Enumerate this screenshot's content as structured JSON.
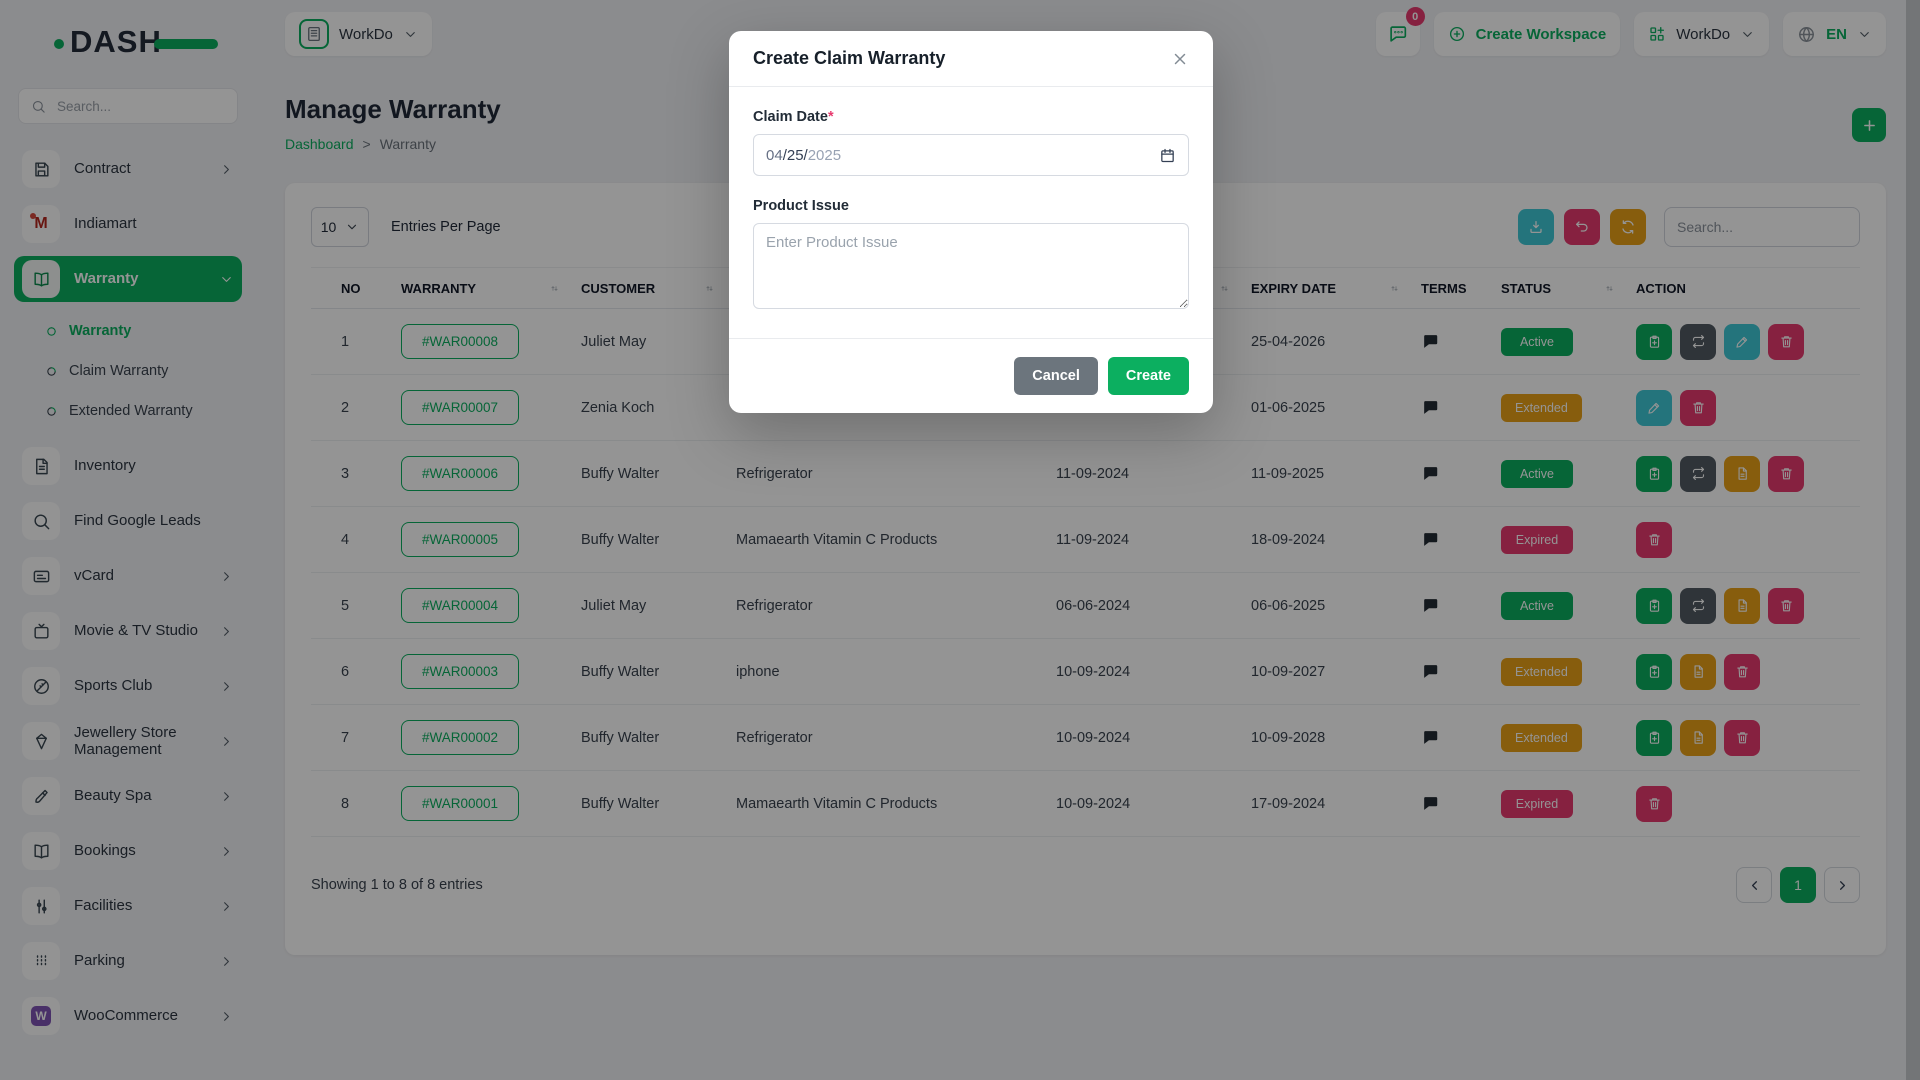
{
  "theme": {
    "colors": {
      "primary": "#0CAF60",
      "info": "#3EC9D6",
      "warning": "#E8A118",
      "danger": "#E73A6E",
      "dark": "#515A63",
      "secondary": "#6C757D"
    }
  },
  "brand": {
    "name": "DASH"
  },
  "sidebar": {
    "search_placeholder": "Search...",
    "items": [
      {
        "label": "Contract",
        "icon": "save",
        "chevron": "right"
      },
      {
        "label": "Indiamart",
        "icon": "indiamart",
        "chevron": null
      },
      {
        "label": "Warranty",
        "icon": "book-open",
        "chevron": "down",
        "active": true,
        "children": [
          {
            "label": "Warranty",
            "active": true
          },
          {
            "label": "Claim Warranty",
            "active": false
          },
          {
            "label": "Extended Warranty",
            "active": false
          }
        ]
      },
      {
        "label": "Inventory",
        "icon": "file-text",
        "chevron": null
      },
      {
        "label": "Find Google Leads",
        "icon": "search",
        "chevron": null
      },
      {
        "label": "vCard",
        "icon": "card",
        "chevron": "right"
      },
      {
        "label": "Movie & TV Studio",
        "icon": "tv",
        "chevron": "right"
      },
      {
        "label": "Sports Club",
        "icon": "ball",
        "chevron": "right"
      },
      {
        "label": "Jewellery Store Management",
        "icon": "gem",
        "chevron": "right"
      },
      {
        "label": "Beauty Spa",
        "icon": "brush",
        "chevron": "right"
      },
      {
        "label": "Bookings",
        "icon": "book-open",
        "chevron": "right"
      },
      {
        "label": "Facilities",
        "icon": "sliders",
        "chevron": "right"
      },
      {
        "label": "Parking",
        "icon": "parking",
        "chevron": "right"
      },
      {
        "label": "WooCommerce",
        "icon": "woocommerce",
        "chevron": "right"
      }
    ]
  },
  "header": {
    "workspace_name": "WorkDo",
    "chat_badge": "0",
    "create_workspace_label": "Create Workspace",
    "user_menu_label": "WorkDo",
    "language": "EN"
  },
  "page": {
    "title": "Manage Warranty",
    "breadcrumb_home": "Dashboard",
    "breadcrumb_sep": ">",
    "breadcrumb_current": "Warranty"
  },
  "toolbar": {
    "entries_value": "10",
    "entries_label": "Entries Per Page",
    "search_placeholder": "Search..."
  },
  "table": {
    "columns": [
      {
        "label": "NO",
        "sort": false
      },
      {
        "label": "WARRANTY",
        "sort": true
      },
      {
        "label": "CUSTOMER",
        "sort": true
      },
      {
        "label": "",
        "sort": true
      },
      {
        "label": "",
        "sort": true
      },
      {
        "label": "EXPIRY DATE",
        "sort": true
      },
      {
        "label": "TERMS",
        "sort": false
      },
      {
        "label": "STATUS",
        "sort": true
      },
      {
        "label": "ACTION",
        "sort": false
      }
    ],
    "rows": [
      {
        "no": "1",
        "warranty": "#WAR00008",
        "customer": "Juliet May",
        "product": "",
        "purchase_date": "",
        "expiry_date": "25-04-2026",
        "status": "Active",
        "actions": [
          "claim",
          "repeat",
          "edit",
          "delete"
        ]
      },
      {
        "no": "2",
        "warranty": "#WAR00007",
        "customer": "Zenia Koch",
        "product": "",
        "purchase_date": "",
        "expiry_date": "01-06-2025",
        "status": "Extended",
        "actions": [
          "edit",
          "delete"
        ]
      },
      {
        "no": "3",
        "warranty": "#WAR00006",
        "customer": "Buffy Walter",
        "product": "Refrigerator",
        "purchase_date": "11-09-2024",
        "expiry_date": "11-09-2025",
        "status": "Active",
        "actions": [
          "claim",
          "repeat",
          "file",
          "delete"
        ]
      },
      {
        "no": "4",
        "warranty": "#WAR00005",
        "customer": "Buffy Walter",
        "product": "Mamaearth Vitamin C Products",
        "purchase_date": "11-09-2024",
        "expiry_date": "18-09-2024",
        "status": "Expired",
        "actions": [
          "delete"
        ]
      },
      {
        "no": "5",
        "warranty": "#WAR00004",
        "customer": "Juliet May",
        "product": "Refrigerator",
        "purchase_date": "06-06-2024",
        "expiry_date": "06-06-2025",
        "status": "Active",
        "actions": [
          "claim",
          "repeat",
          "file",
          "delete"
        ]
      },
      {
        "no": "6",
        "warranty": "#WAR00003",
        "customer": "Buffy Walter",
        "product": "iphone",
        "purchase_date": "10-09-2024",
        "expiry_date": "10-09-2027",
        "status": "Extended",
        "actions": [
          "claim",
          "file",
          "delete"
        ]
      },
      {
        "no": "7",
        "warranty": "#WAR00002",
        "customer": "Buffy Walter",
        "product": "Refrigerator",
        "purchase_date": "10-09-2024",
        "expiry_date": "10-09-2028",
        "status": "Extended",
        "actions": [
          "claim",
          "file",
          "delete"
        ]
      },
      {
        "no": "8",
        "warranty": "#WAR00001",
        "customer": "Buffy Walter",
        "product": "Mamaearth Vitamin C Products",
        "purchase_date": "10-09-2024",
        "expiry_date": "17-09-2024",
        "status": "Expired",
        "actions": [
          "delete"
        ]
      }
    ],
    "status_colors": {
      "Active": "primary",
      "Extended": "warning",
      "Expired": "danger"
    }
  },
  "footer": {
    "showing_text": "Showing 1 to 8 of 8 entries",
    "current_page": "1"
  },
  "modal": {
    "title": "Create Claim Warranty",
    "claim_date_label": "Claim Date",
    "required_mark": "*",
    "date_month": "04",
    "date_day": "25",
    "date_year": "2025",
    "date_sep": "/",
    "product_issue_label": "Product Issue",
    "product_issue_placeholder": "Enter Product Issue",
    "cancel_label": "Cancel",
    "create_label": "Create"
  }
}
